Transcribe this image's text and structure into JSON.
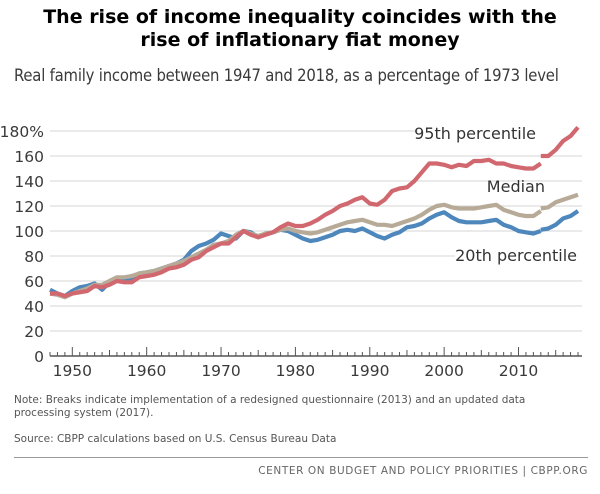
{
  "header": {
    "title_line1": "The rise of income inequality coincides with the",
    "title_line2": "rise of inflationary fiat money",
    "subtitle": "Real family income between 1947 and 2018, as a percentage of 1973 level"
  },
  "chart_data": {
    "type": "line",
    "x_range": [
      1947,
      2018
    ],
    "ylim": [
      0,
      180
    ],
    "yticks": [
      "0",
      "20",
      "40",
      "60",
      "80",
      "100",
      "120",
      "140",
      "160",
      "180%"
    ],
    "xticks": [
      "1950",
      "1960",
      "1970",
      "1980",
      "1990",
      "2000",
      "2010"
    ],
    "series": [
      {
        "name": "95th percentile",
        "color": "#d1686f",
        "segments": [
          {
            "x": [
              1947,
              1948,
              1949,
              1950,
              1951,
              1952,
              1953,
              1954,
              1955,
              1956,
              1957,
              1958,
              1959,
              1960,
              1961,
              1962,
              1963,
              1964,
              1965,
              1966,
              1967,
              1968,
              1969,
              1970,
              1971,
              1972,
              1973,
              1974,
              1975,
              1976,
              1977,
              1978,
              1979,
              1980,
              1981,
              1982,
              1983,
              1984,
              1985,
              1986,
              1987,
              1988,
              1989,
              1990,
              1991,
              1992,
              1993,
              1994,
              1995,
              1996,
              1997,
              1998,
              1999,
              2000,
              2001,
              2002,
              2003,
              2004,
              2005,
              2006,
              2007,
              2008,
              2009,
              2010,
              2011,
              2012,
              2013
            ],
            "y": [
              50,
              50,
              48,
              50,
              51,
              52,
              56,
              55,
              57,
              60,
              59,
              59,
              63,
              64,
              65,
              67,
              70,
              71,
              73,
              77,
              79,
              84,
              87,
              90,
              90,
              95,
              100,
              97,
              95,
              97,
              99,
              103,
              106,
              104,
              104,
              106,
              109,
              113,
              116,
              120,
              122,
              125,
              127,
              122,
              121,
              125,
              132,
              134,
              135,
              140,
              147,
              154,
              154,
              153,
              151,
              153,
              152,
              156,
              156,
              157,
              154,
              154,
              152,
              151,
              150,
              150,
              154
            ]
          },
          {
            "x": [
              2013,
              2014,
              2015,
              2016,
              2017,
              2018
            ],
            "y": [
              160,
              160,
              165,
              172,
              176,
              183
            ]
          }
        ]
      },
      {
        "name": "Median",
        "color": "#b7ab98",
        "segments": [
          {
            "x": [
              1947,
              1948,
              1949,
              1950,
              1951,
              1952,
              1953,
              1954,
              1955,
              1956,
              1957,
              1958,
              1959,
              1960,
              1961,
              1962,
              1963,
              1964,
              1965,
              1966,
              1967,
              1968,
              1969,
              1970,
              1971,
              1972,
              1973,
              1974,
              1975,
              1976,
              1977,
              1978,
              1979,
              1980,
              1981,
              1982,
              1983,
              1984,
              1985,
              1986,
              1987,
              1988,
              1989,
              1990,
              1991,
              1992,
              1993,
              1994,
              1995,
              1996,
              1997,
              1998,
              1999,
              2000,
              2001,
              2002,
              2003,
              2004,
              2005,
              2006,
              2007,
              2008,
              2009,
              2010,
              2011,
              2012,
              2013
            ],
            "y": [
              50,
              49,
              47,
              50,
              52,
              54,
              57,
              57,
              60,
              63,
              63,
              64,
              66,
              67,
              68,
              70,
              72,
              74,
              76,
              79,
              82,
              85,
              89,
              90,
              92,
              97,
              100,
              98,
              96,
              98,
              99,
              101,
              102,
              100,
              99,
              98,
              99,
              101,
              103,
              105,
              107,
              108,
              109,
              107,
              105,
              105,
              104,
              106,
              108,
              110,
              113,
              117,
              120,
              121,
              119,
              118,
              118,
              118,
              119,
              120,
              121,
              117,
              115,
              113,
              112,
              112,
              116
            ]
          },
          {
            "x": [
              2013,
              2014,
              2015,
              2016,
              2017,
              2018
            ],
            "y": [
              118,
              119,
              123,
              125,
              127,
              129
            ]
          }
        ]
      },
      {
        "name": "20th percentile",
        "color": "#4d87bc",
        "segments": [
          {
            "x": [
              1947,
              1948,
              1949,
              1950,
              1951,
              1952,
              1953,
              1954,
              1955,
              1956,
              1957,
              1958,
              1959,
              1960,
              1961,
              1962,
              1963,
              1964,
              1965,
              1966,
              1967,
              1968,
              1969,
              1970,
              1971,
              1972,
              1973,
              1974,
              1975,
              1976,
              1977,
              1978,
              1979,
              1980,
              1981,
              1982,
              1983,
              1984,
              1985,
              1986,
              1987,
              1988,
              1989,
              1990,
              1991,
              1992,
              1993,
              1994,
              1995,
              1996,
              1997,
              1998,
              1999,
              2000,
              2001,
              2002,
              2003,
              2004,
              2005,
              2006,
              2007,
              2008,
              2009,
              2010,
              2011,
              2012,
              2013
            ],
            "y": [
              53,
              50,
              48,
              52,
              55,
              56,
              58,
              53,
              59,
              62,
              62,
              62,
              66,
              67,
              68,
              70,
              72,
              74,
              77,
              84,
              88,
              90,
              93,
              98,
              96,
              94,
              100,
              99,
              95,
              98,
              99,
              101,
              100,
              97,
              94,
              92,
              93,
              95,
              97,
              100,
              101,
              100,
              102,
              99,
              96,
              94,
              97,
              99,
              103,
              104,
              106,
              110,
              113,
              115,
              111,
              108,
              107,
              107,
              107,
              108,
              109,
              105,
              103,
              100,
              99,
              98,
              100
            ]
          },
          {
            "x": [
              2013,
              2014,
              2015,
              2016,
              2017,
              2018
            ],
            "y": [
              101,
              102,
              105,
              110,
              112,
              116
            ]
          }
        ]
      }
    ],
    "labels": {
      "p95": "95th percentile",
      "median": "Median",
      "p20": "20th percentile"
    }
  },
  "note": "Note: Breaks indicate implementation of a redesigned questionnaire (2013) and an updated data processing system (2017).",
  "source": "Source: CBPP calculations based on U.S. Census Bureau Data",
  "footer": "CENTER ON BUDGET AND POLICY PRIORITIES | CBPP.ORG"
}
